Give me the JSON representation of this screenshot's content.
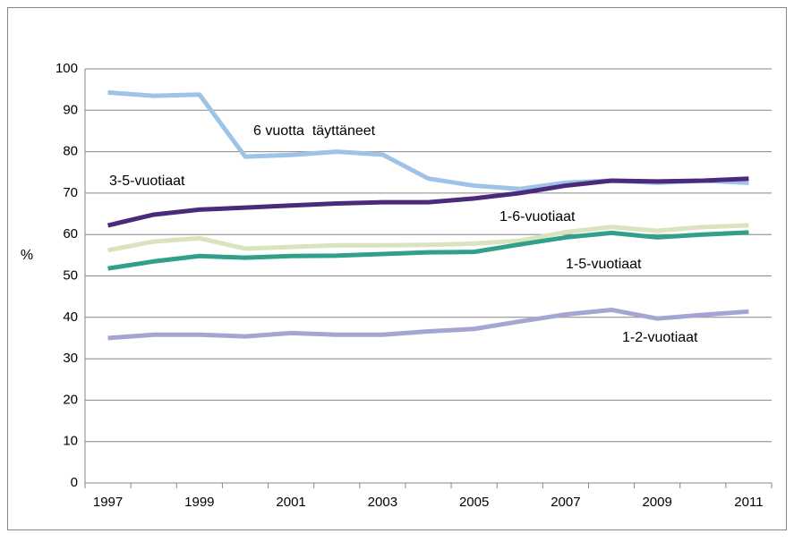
{
  "chart_data": {
    "type": "line",
    "y_label": "%",
    "categories": [
      "1997",
      null,
      "1999",
      null,
      "2001",
      null,
      "2003",
      null,
      "2005",
      null,
      "2007",
      null,
      "2009",
      null,
      "2011"
    ],
    "ylim": [
      0,
      100
    ],
    "yticks": [
      0,
      10,
      20,
      30,
      40,
      50,
      60,
      70,
      80,
      90,
      100
    ],
    "grid": true,
    "series": [
      {
        "name": "6 vuotta  täyttäneet",
        "color": "#9dc3e6",
        "values": [
          94.3,
          93.5,
          93.8,
          78.8,
          79.2,
          80,
          79.3,
          73.5,
          71.8,
          71,
          72.5,
          73,
          72.5,
          73,
          72.5
        ]
      },
      {
        "name": "3-5-vuotiaat",
        "color": "#4b2a7b",
        "values": [
          62.2,
          64.8,
          66,
          66.5,
          67,
          67.5,
          67.8,
          67.8,
          68.7,
          70,
          71.8,
          73,
          72.8,
          73,
          73.5
        ]
      },
      {
        "name": "1-6-vuotiaat",
        "color": "#d7e4bd",
        "values": [
          56.2,
          58.3,
          59.1,
          56.6,
          57,
          57.4,
          57.4,
          57.5,
          57.8,
          58.5,
          60.6,
          61.8,
          60.9,
          61.8,
          62.2
        ]
      },
      {
        "name": "1-5-vuotiaat",
        "color": "#31a08a",
        "values": [
          51.8,
          53.5,
          54.8,
          54.4,
          54.8,
          54.9,
          55.3,
          55.7,
          55.8,
          57.6,
          59.3,
          60.4,
          59.3,
          60,
          60.5
        ]
      },
      {
        "name": "1-2-vuotiaat",
        "color": "#a5a5d3",
        "values": [
          35,
          35.8,
          35.8,
          35.4,
          36.2,
          35.8,
          35.8,
          36.6,
          37.2,
          39,
          40.7,
          41.8,
          39.7,
          40.6,
          41.4
        ]
      }
    ]
  }
}
